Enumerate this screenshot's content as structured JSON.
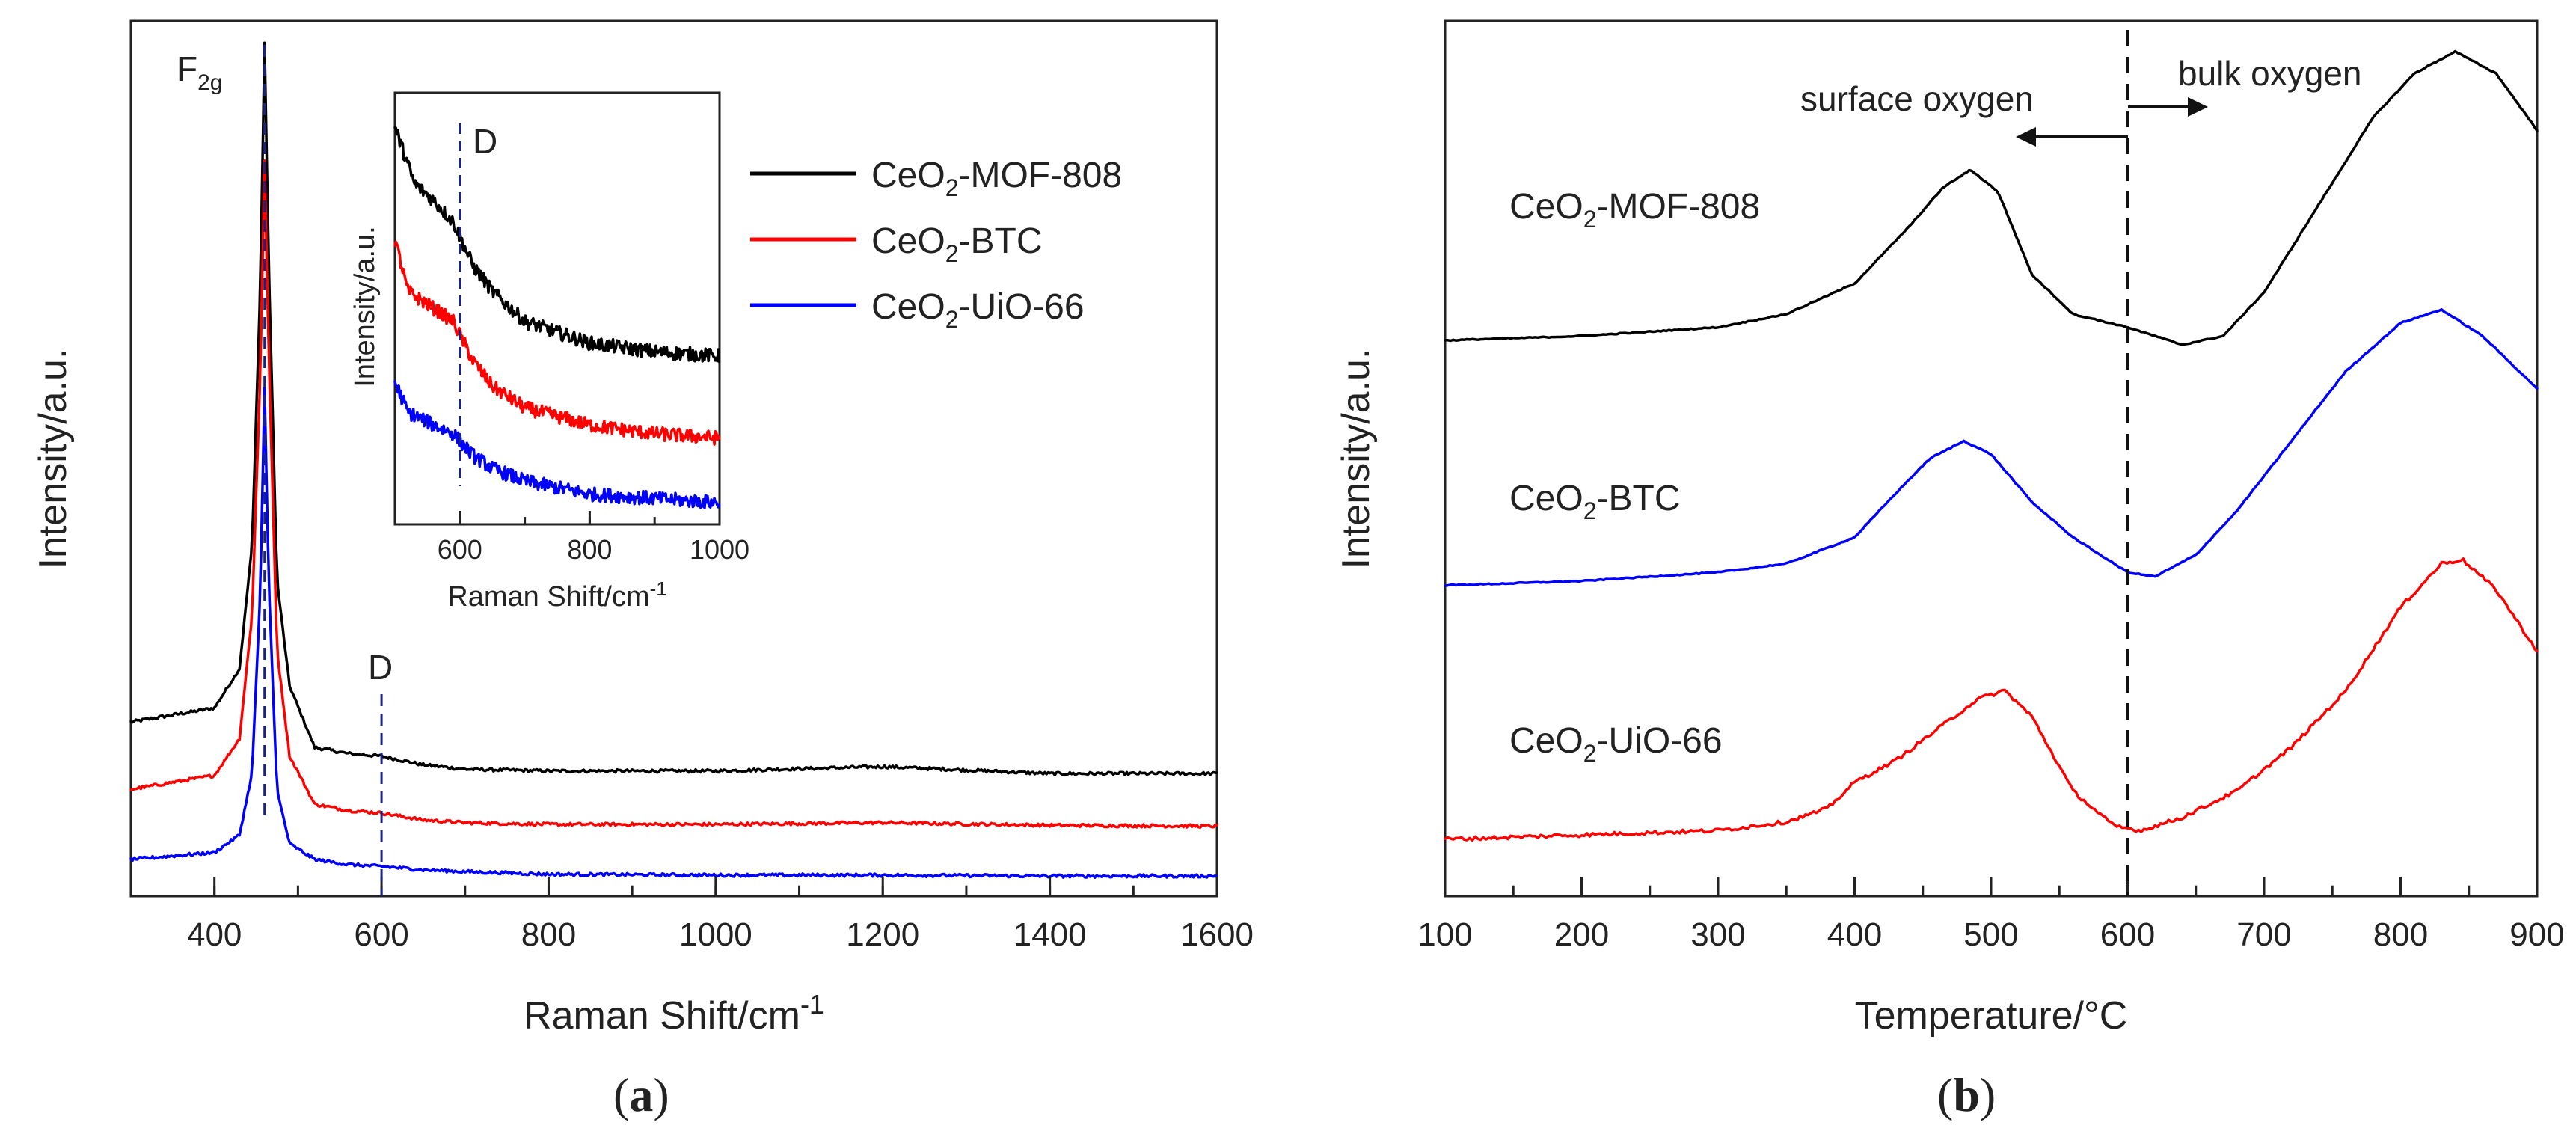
{
  "chart_data": [
    {
      "panel_label": "a",
      "type": "line",
      "xlabel": "Raman Shift/cm",
      "xlabel_sup": "-1",
      "ylabel": "Intensity/a.u.",
      "xlim": [
        300,
        1600
      ],
      "ylim": [
        0,
        100
      ],
      "xticks": [
        "400",
        "600",
        "800",
        "1000",
        "1200",
        "1400",
        "1600"
      ],
      "annotations": {
        "peak_main": "F",
        "peak_sub": "2g",
        "defect": "D",
        "defect_position": 600,
        "peak_position": 460
      },
      "series": [
        {
          "name": "CeO",
          "name_sub": "2",
          "name_suffix": "-MOF-808",
          "color": "#000000",
          "x": [
            300,
            400,
            430,
            445,
            455,
            460,
            465,
            475,
            490,
            520,
            560,
            600,
            650,
            700,
            800,
            1000,
            1200,
            1400,
            1600
          ],
          "y": [
            19.9,
            21.5,
            26,
            40,
            70,
            97.5,
            72,
            36,
            24,
            17,
            16.3,
            16,
            15,
            14.5,
            14.3,
            14.3,
            14.8,
            14,
            14
          ]
        },
        {
          "name": "CeO",
          "name_sub": "2",
          "name_suffix": "-BTC",
          "color": "#ff0000",
          "x": [
            300,
            400,
            430,
            445,
            455,
            460,
            465,
            475,
            490,
            520,
            560,
            600,
            650,
            700,
            800,
            1000,
            1200,
            1400,
            1600
          ],
          "y": [
            12.2,
            13.8,
            18,
            32,
            60,
            84,
            62,
            28,
            16,
            10.5,
            9.8,
            9.5,
            8.7,
            8.4,
            8.2,
            8.2,
            8.4,
            8.1,
            8
          ]
        },
        {
          "name": "CeO",
          "name_sub": "2",
          "name_suffix": "-UiO-66",
          "color": "#0000ff",
          "x": [
            300,
            400,
            430,
            445,
            455,
            460,
            465,
            475,
            490,
            520,
            560,
            600,
            650,
            700,
            800,
            1000,
            1200,
            1400,
            1600
          ],
          "y": [
            4.2,
            5,
            7,
            14,
            35,
            58,
            36,
            12,
            6,
            4.2,
            3.6,
            3.4,
            3,
            2.8,
            2.5,
            2.4,
            2.4,
            2.3,
            2.3
          ]
        }
      ],
      "inset": {
        "xlabel": "Raman Shift/cm",
        "xlabel_sup": "-1",
        "ylabel": "Intensity/a.u.",
        "xlim": [
          500,
          1000
        ],
        "ylim": [
          0,
          100
        ],
        "xticks": [
          "600",
          "800",
          "1000"
        ],
        "defect": "D",
        "series": [
          {
            "color": "#000000",
            "x": [
              500,
              530,
              560,
              590,
              620,
              650,
              700,
              800,
              900,
              1000
            ],
            "y": [
              92,
              79,
              75,
              70,
              60,
              54,
              47,
              42,
              40,
              39
            ]
          },
          {
            "color": "#ff0000",
            "x": [
              500,
              520,
              560,
              590,
              620,
              650,
              700,
              800,
              900,
              1000
            ],
            "y": [
              66,
              54,
              50,
              47,
              38,
              32,
              27,
              23,
              21,
              20
            ]
          },
          {
            "color": "#0000ff",
            "x": [
              500,
              520,
              560,
              590,
              620,
              650,
              700,
              800,
              900,
              1000
            ],
            "y": [
              33,
              26,
              23,
              21,
              16,
              13,
              10,
              7,
              6,
              5
            ]
          }
        ]
      }
    },
    {
      "panel_label": "b",
      "type": "line",
      "xlabel": "Temperature/°C",
      "ylabel": "Intensity/a.u.",
      "xlim": [
        100,
        900
      ],
      "ylim": [
        0,
        100
      ],
      "xticks": [
        "100",
        "200",
        "300",
        "400",
        "500",
        "600",
        "700",
        "800",
        "900"
      ],
      "divider_x": 600,
      "annotations": {
        "left": "surface oxygen",
        "right": "bulk oxygen"
      },
      "series": [
        {
          "name": "CeO",
          "name_sub": "2",
          "name_suffix": "-MOF-808",
          "color": "#000000",
          "x": [
            100,
            200,
            300,
            350,
            400,
            440,
            465,
            485,
            505,
            530,
            560,
            600,
            640,
            670,
            700,
            740,
            780,
            810,
            840,
            870,
            900
          ],
          "y": [
            63.5,
            64,
            65,
            66.5,
            70,
            76.5,
            81,
            83,
            80.5,
            71,
            66.5,
            65,
            63,
            64,
            69,
            79,
            89,
            94,
            96.5,
            94,
            87.5
          ]
        },
        {
          "name": "CeO",
          "name_sub": "2",
          "name_suffix": "-BTC",
          "color": "#0000ff",
          "x": [
            100,
            200,
            300,
            350,
            400,
            430,
            455,
            480,
            500,
            530,
            560,
            600,
            620,
            650,
            680,
            720,
            760,
            800,
            830,
            860,
            900
          ],
          "y": [
            35.5,
            36,
            37,
            38,
            41,
            46,
            50,
            52,
            50.5,
            45,
            41,
            37,
            36.5,
            39,
            44,
            52,
            60,
            65.5,
            67,
            64,
            58
          ]
        },
        {
          "name": "CeO",
          "name_sub": "2",
          "name_suffix": "-UiO-66",
          "color": "#ff0000",
          "x": [
            100,
            200,
            300,
            350,
            380,
            400,
            430,
            460,
            490,
            510,
            530,
            560,
            590,
            610,
            640,
            680,
            720,
            760,
            800,
            830,
            845,
            870,
            900
          ],
          "y": [
            6.5,
            7,
            7.5,
            8.5,
            10,
            13,
            15.5,
            19,
            22.5,
            23.5,
            20.5,
            12,
            8,
            7.5,
            9,
            12,
            17,
            23.5,
            33,
            38,
            38.5,
            35,
            28
          ]
        }
      ]
    }
  ]
}
